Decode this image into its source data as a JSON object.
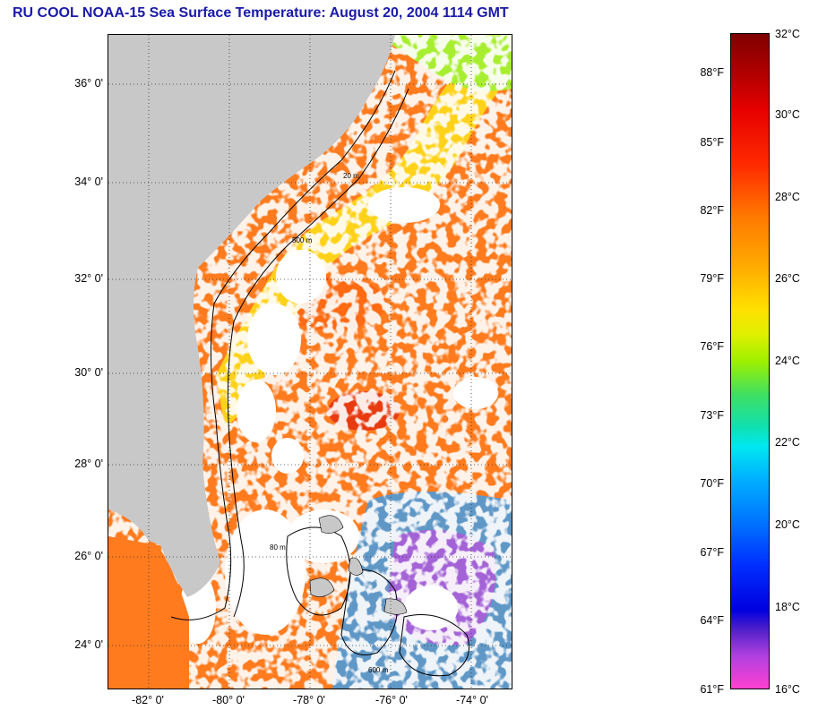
{
  "title": "RU COOL  NOAA-15  Sea Surface Temperature:  August 20, 2004 1114 GMT",
  "map": {
    "lat_labels": [
      "36° 0'",
      "34° 0'",
      "32° 0'",
      "30° 0'",
      "28° 0'",
      "26° 0'",
      "24° 0'"
    ],
    "lon_labels": [
      "-82° 0'",
      "-80° 0'",
      "-78° 0'",
      "-76° 0'",
      "-74° 0'"
    ],
    "isobath_labels": [
      "20 m",
      "500 m",
      "80 m",
      "600 m"
    ],
    "land_color": "#c8c8c8",
    "cloud_color": "#ffffff"
  },
  "colorbar": {
    "fahrenheit_labels": [
      "88°F",
      "85°F",
      "82°F",
      "79°F",
      "76°F",
      "73°F",
      "70°F",
      "67°F",
      "64°F",
      "61°F"
    ],
    "celsius_labels": [
      "32°C",
      "30°C",
      "28°C",
      "26°C",
      "24°C",
      "22°C",
      "20°C",
      "18°C",
      "16°C"
    ]
  }
}
